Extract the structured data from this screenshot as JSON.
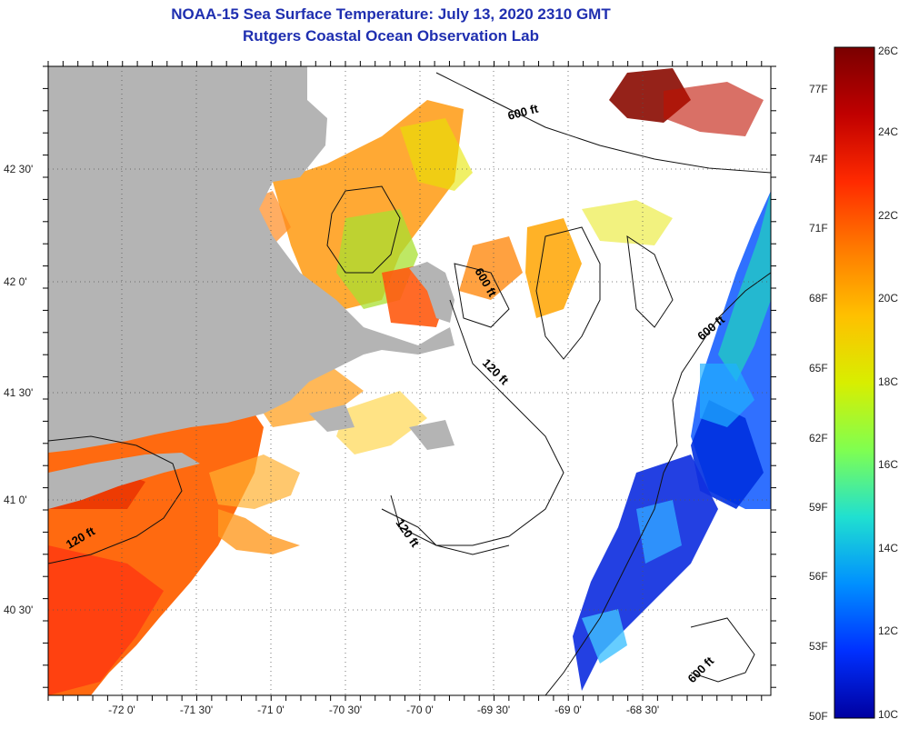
{
  "title": "NOAA-15 Sea Surface Temperature:  July 13, 2020 2310 GMT",
  "subtitle": "Rutgers Coastal Ocean Observation Lab",
  "x_tick_labels": [
    "-72 0'",
    "-71 30'",
    "-71 0'",
    "-70 30'",
    "-70 0'",
    "-69 30'",
    "-69 0'",
    "-68 30'"
  ],
  "y_tick_labels": [
    "42 30'",
    "42 0'",
    "41 30'",
    "41 0'",
    "40 30'"
  ],
  "colorbar": {
    "fahrenheit_labels": [
      "77F",
      "74F",
      "71F",
      "68F",
      "65F",
      "62F",
      "59F",
      "56F",
      "53F",
      "50F"
    ],
    "celsius_labels": [
      "26C",
      "24C",
      "22C",
      "20C",
      "18C",
      "16C",
      "14C",
      "12C",
      "10C"
    ],
    "colors": [
      "#7a0000",
      "#c00000",
      "#ff2a00",
      "#ff7a00",
      "#ffb000",
      "#e6e600",
      "#8cff40",
      "#20e0d0",
      "#0090ff",
      "#0040ff",
      "#0000b0"
    ]
  },
  "isobath_labels": [
    "600 ft",
    "600 ft",
    "600 ft",
    "120 ft",
    "600 ft",
    "120 ft",
    "120 ft"
  ],
  "colors": {
    "land": "#b4b4b4",
    "title": "#1f2fb0",
    "ocean_nodata": "#ffffff"
  }
}
